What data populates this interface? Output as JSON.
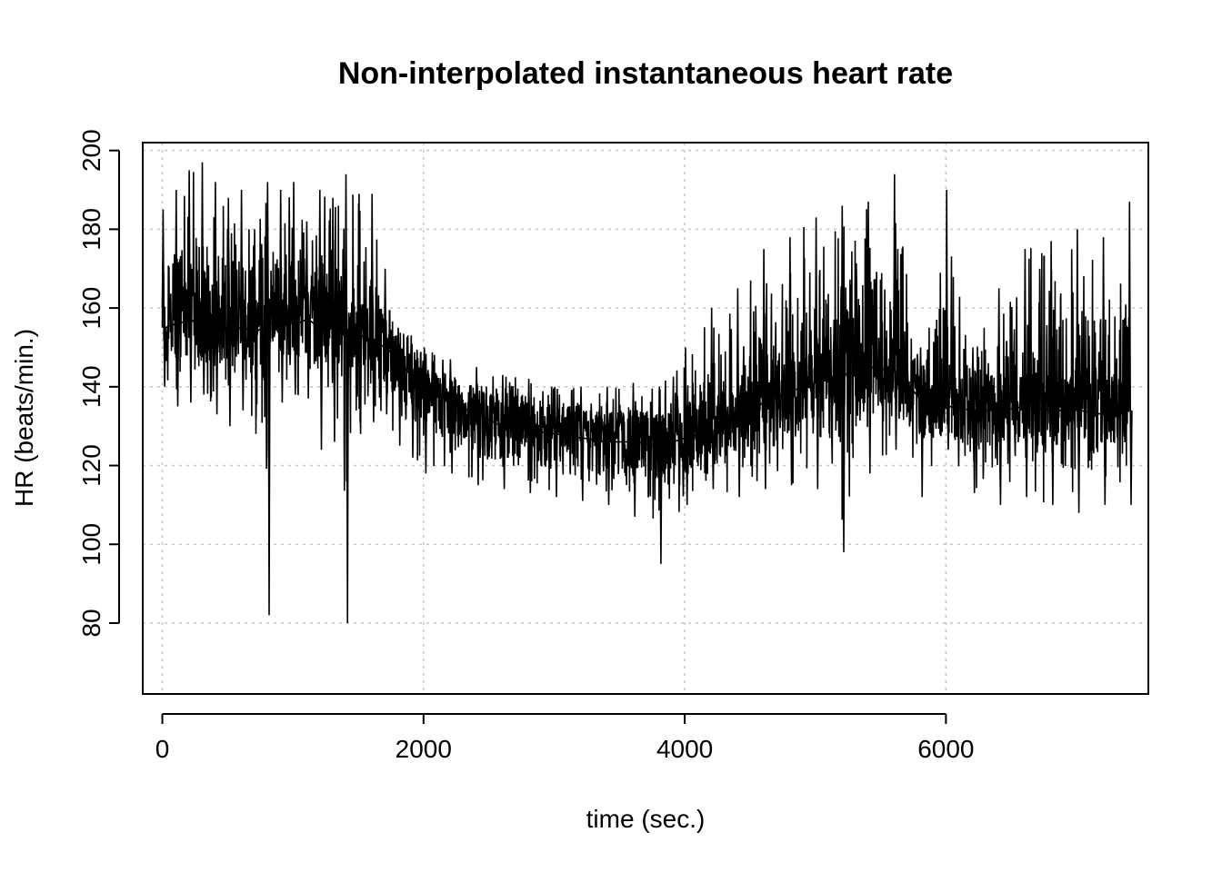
{
  "chart_data": {
    "type": "line",
    "title": "Non-interpolated instantaneous heart rate",
    "xlabel": "time (sec.)",
    "ylabel": "HR (beats/min.)",
    "xlim": [
      -150,
      7550
    ],
    "ylim": [
      62,
      202
    ],
    "xticks": [
      0,
      2000,
      4000,
      6000
    ],
    "xtick_labels": [
      "0",
      "2000",
      "4000",
      "6000"
    ],
    "yticks": [
      80,
      100,
      120,
      140,
      160,
      180,
      200
    ],
    "ytick_labels": [
      "80",
      "100",
      "120",
      "140",
      "160",
      "180",
      "200"
    ],
    "grid": true,
    "grid_style": "dotted",
    "color": "#000000",
    "series": [
      {
        "x": [
          0,
          100,
          200,
          300,
          400,
          500,
          600,
          700,
          800,
          900,
          1000,
          1100,
          1200,
          1300,
          1400,
          1500,
          1600,
          1700,
          1800,
          1900,
          2000,
          2200,
          2400,
          2600,
          2800,
          3000,
          3200,
          3400,
          3600,
          3800,
          4000,
          4200,
          4400,
          4600,
          4800,
          5000,
          5200,
          5400,
          5600,
          5800,
          6000,
          6200,
          6400,
          6600,
          6800,
          7000,
          7200,
          7400
        ],
        "y": [
          155,
          156,
          157,
          155,
          156,
          154,
          155,
          154,
          156,
          157,
          156,
          157,
          155,
          156,
          154,
          153,
          152,
          150,
          146,
          143,
          140,
          136,
          133,
          130,
          129,
          128,
          127,
          126,
          126,
          125,
          127,
          129,
          132,
          136,
          139,
          141,
          143,
          145,
          144,
          137,
          135,
          134,
          134,
          135,
          134,
          134,
          133,
          134
        ],
        "upper": [
          185,
          190,
          195,
          197,
          192,
          188,
          190,
          180,
          192,
          190,
          192,
          182,
          190,
          188,
          194,
          189,
          189,
          170,
          155,
          153,
          150,
          147,
          145,
          143,
          142,
          140,
          140,
          140,
          141,
          140,
          150,
          160,
          165,
          175,
          178,
          183,
          186,
          187,
          194,
          150,
          190,
          150,
          165,
          175,
          177,
          180,
          178,
          187
        ],
        "lower": [
          140,
          135,
          136,
          138,
          133,
          130,
          134,
          132,
          82,
          136,
          138,
          137,
          124,
          126,
          80,
          128,
          131,
          133,
          125,
          122,
          118,
          118,
          115,
          114,
          113,
          112,
          111,
          110,
          107,
          95,
          110,
          114,
          112,
          114,
          115,
          114,
          98,
          118,
          124,
          112,
          124,
          113,
          110,
          112,
          110,
          108,
          110,
          110
        ]
      }
    ]
  }
}
